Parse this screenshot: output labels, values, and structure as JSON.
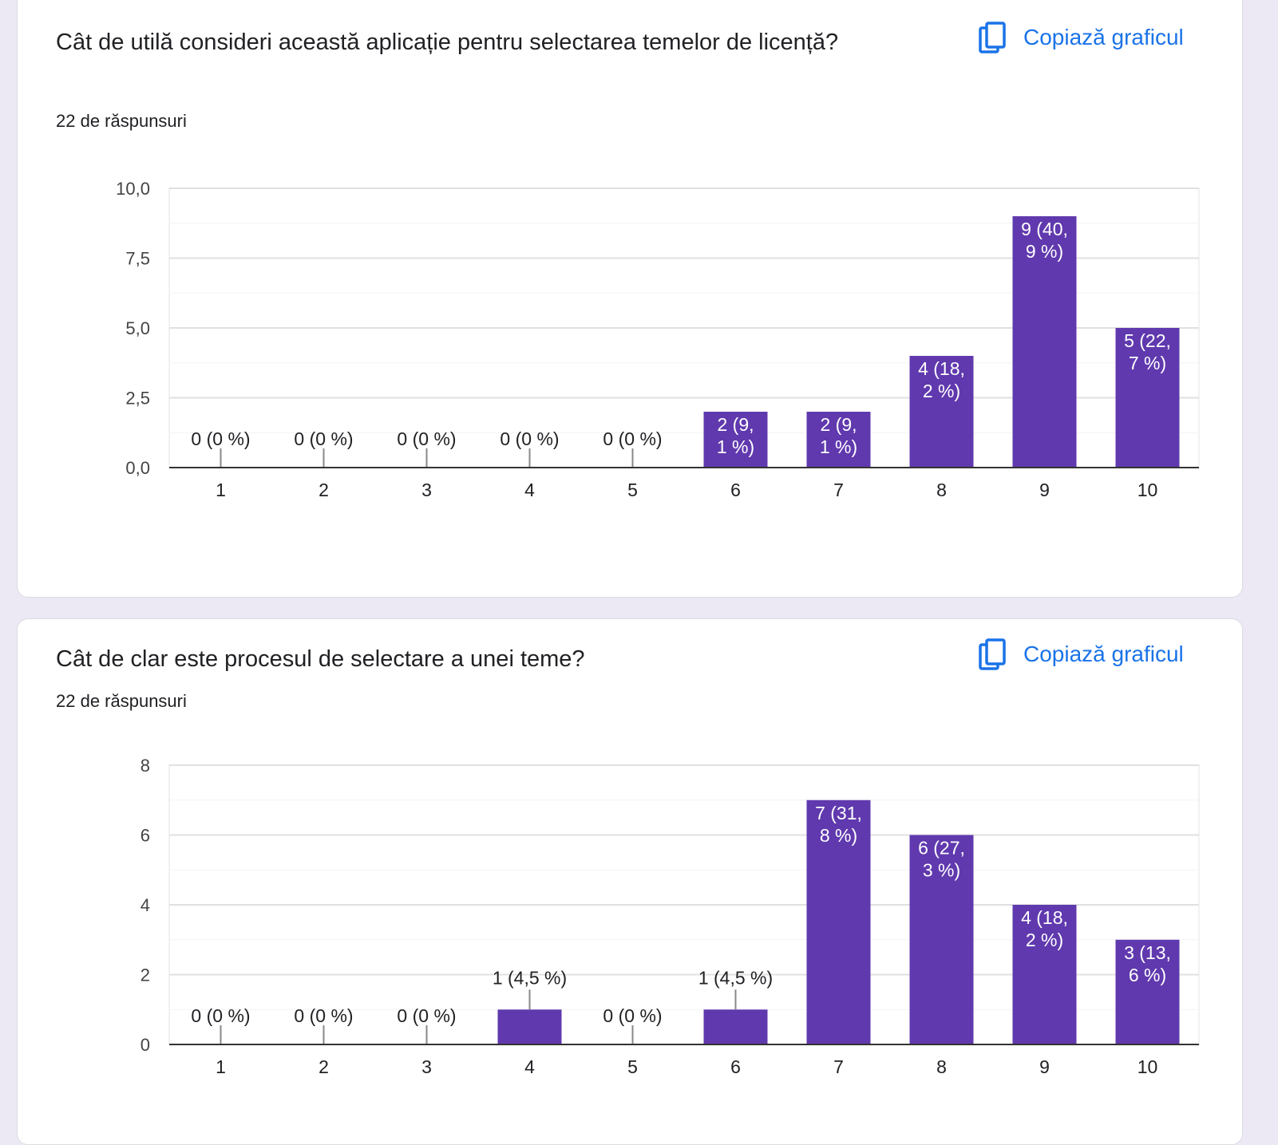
{
  "colors": {
    "bar": "#6039ae",
    "accent": "#1a73e8",
    "grid": "#e0e0e0",
    "axis": "#333333"
  },
  "cards": [
    {
      "title": "Cât de utilă consideri această aplicație pentru selectarea temelor de licență?",
      "responses": "22 de răspunsuri",
      "copy_label": "Copiază graficul",
      "copy_icon": "copy-icon"
    },
    {
      "title": "Cât de clar este procesul de selectare a unei teme?",
      "responses": "22 de răspunsuri",
      "copy_label": "Copiază graficul",
      "copy_icon": "copy-icon"
    }
  ],
  "chart_data": [
    {
      "type": "bar",
      "title": "Cât de utilă consideri această aplicație pentru selectarea temelor de licență?",
      "categories": [
        "1",
        "2",
        "3",
        "4",
        "5",
        "6",
        "7",
        "8",
        "9",
        "10"
      ],
      "values": [
        0,
        0,
        0,
        0,
        0,
        2,
        2,
        4,
        9,
        5
      ],
      "data_labels": [
        [
          "0 (0 %)"
        ],
        [
          "0 (0 %)"
        ],
        [
          "0 (0 %)"
        ],
        [
          "0 (0 %)"
        ],
        [
          "0 (0 %)"
        ],
        [
          "2 (9,",
          "1 %)"
        ],
        [
          "2 (9,",
          "1 %)"
        ],
        [
          "4 (18,",
          "2 %)"
        ],
        [
          "9 (40,",
          "9 %)"
        ],
        [
          "5 (22,",
          "7 %)"
        ]
      ],
      "yticks": [
        "0,0",
        "2,5",
        "5,0",
        "7,5",
        "10,0"
      ],
      "ylim": [
        0,
        10
      ],
      "grid": true,
      "xlabel": "",
      "ylabel": ""
    },
    {
      "type": "bar",
      "title": "Cât de clar este procesul de selectare a unei teme?",
      "categories": [
        "1",
        "2",
        "3",
        "4",
        "5",
        "6",
        "7",
        "8",
        "9",
        "10"
      ],
      "values": [
        0,
        0,
        0,
        1,
        0,
        1,
        7,
        6,
        4,
        3
      ],
      "data_labels": [
        [
          "0 (0 %)"
        ],
        [
          "0 (0 %)"
        ],
        [
          "0 (0 %)"
        ],
        [
          "1 (4,5 %)"
        ],
        [
          "0 (0 %)"
        ],
        [
          "1 (4,5 %)"
        ],
        [
          "7 (31,",
          "8 %)"
        ],
        [
          "6 (27,",
          "3 %)"
        ],
        [
          "4 (18,",
          "2 %)"
        ],
        [
          "3 (13,",
          "6 %)"
        ]
      ],
      "yticks": [
        "0",
        "2",
        "4",
        "6",
        "8"
      ],
      "ylim": [
        0,
        8
      ],
      "grid": true,
      "xlabel": "",
      "ylabel": ""
    }
  ]
}
